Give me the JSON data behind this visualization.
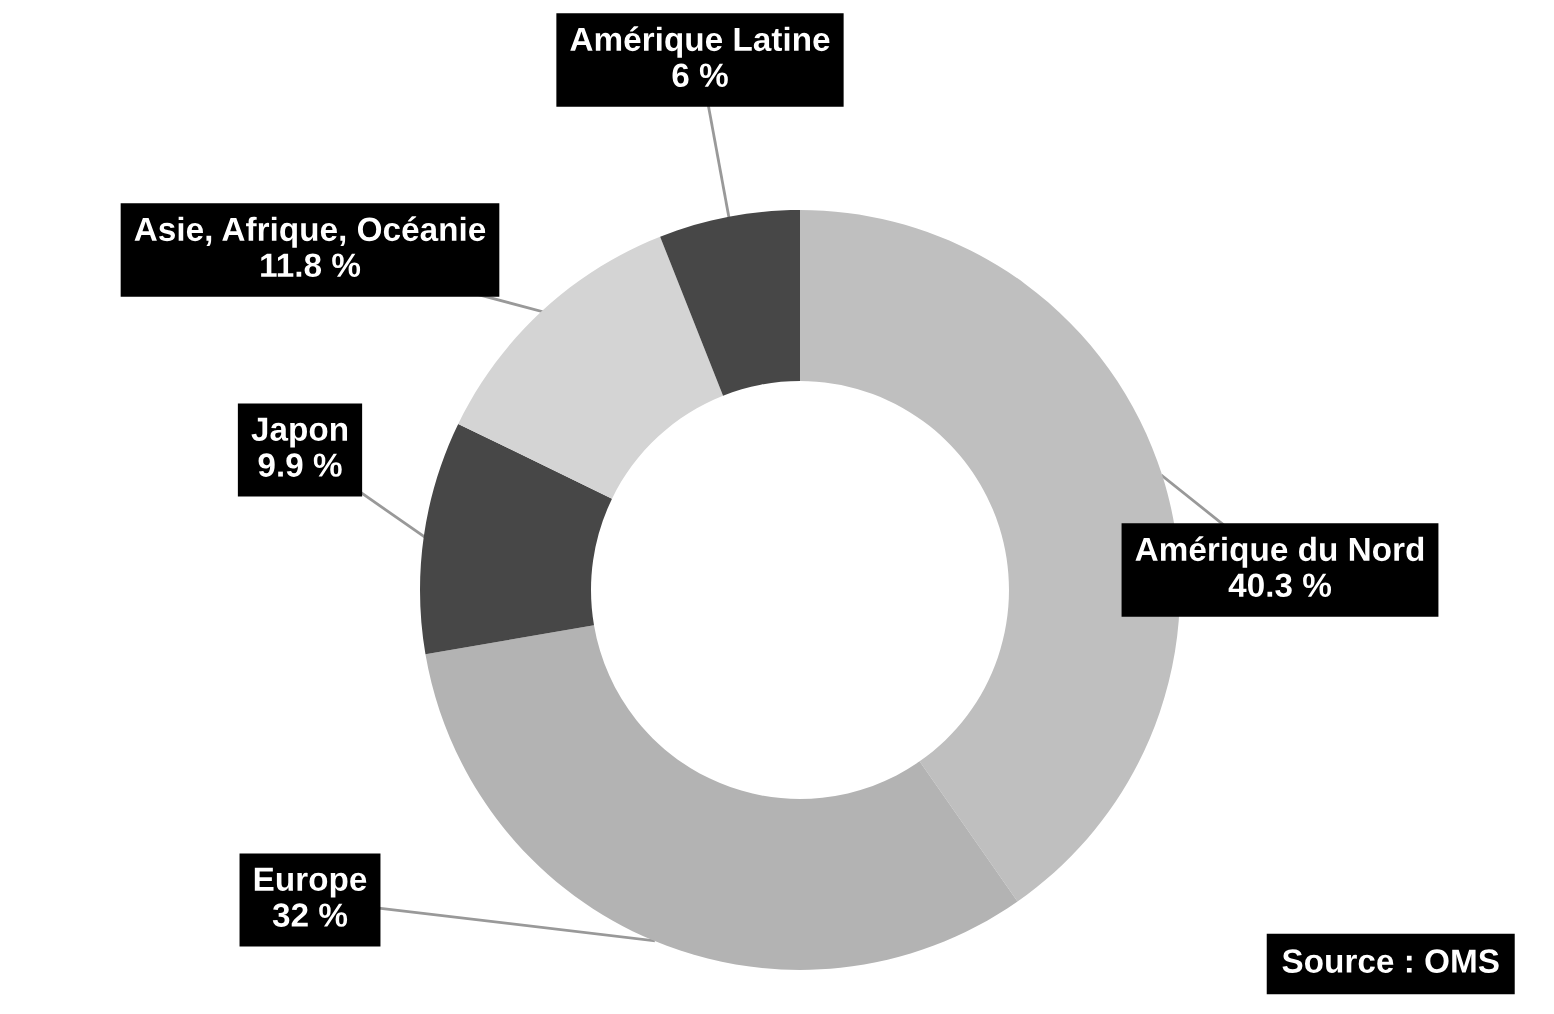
{
  "chart_data": {
    "type": "donut",
    "categories": [
      "Amérique du Nord",
      "Europe",
      "Japon",
      "Asie, Afrique, Océanie",
      "Amérique Latine"
    ],
    "values": [
      40.3,
      32,
      9.9,
      11.8,
      6
    ],
    "colors": [
      "#bfbfbf",
      "#b3b3b3",
      "#474747",
      "#d4d4d4",
      "#474747"
    ],
    "value_labels": [
      "40.3 %",
      "32 %",
      "9.9 %",
      "11.8 %",
      "6 %"
    ],
    "annotations": [
      "Source : OMS"
    ]
  }
}
